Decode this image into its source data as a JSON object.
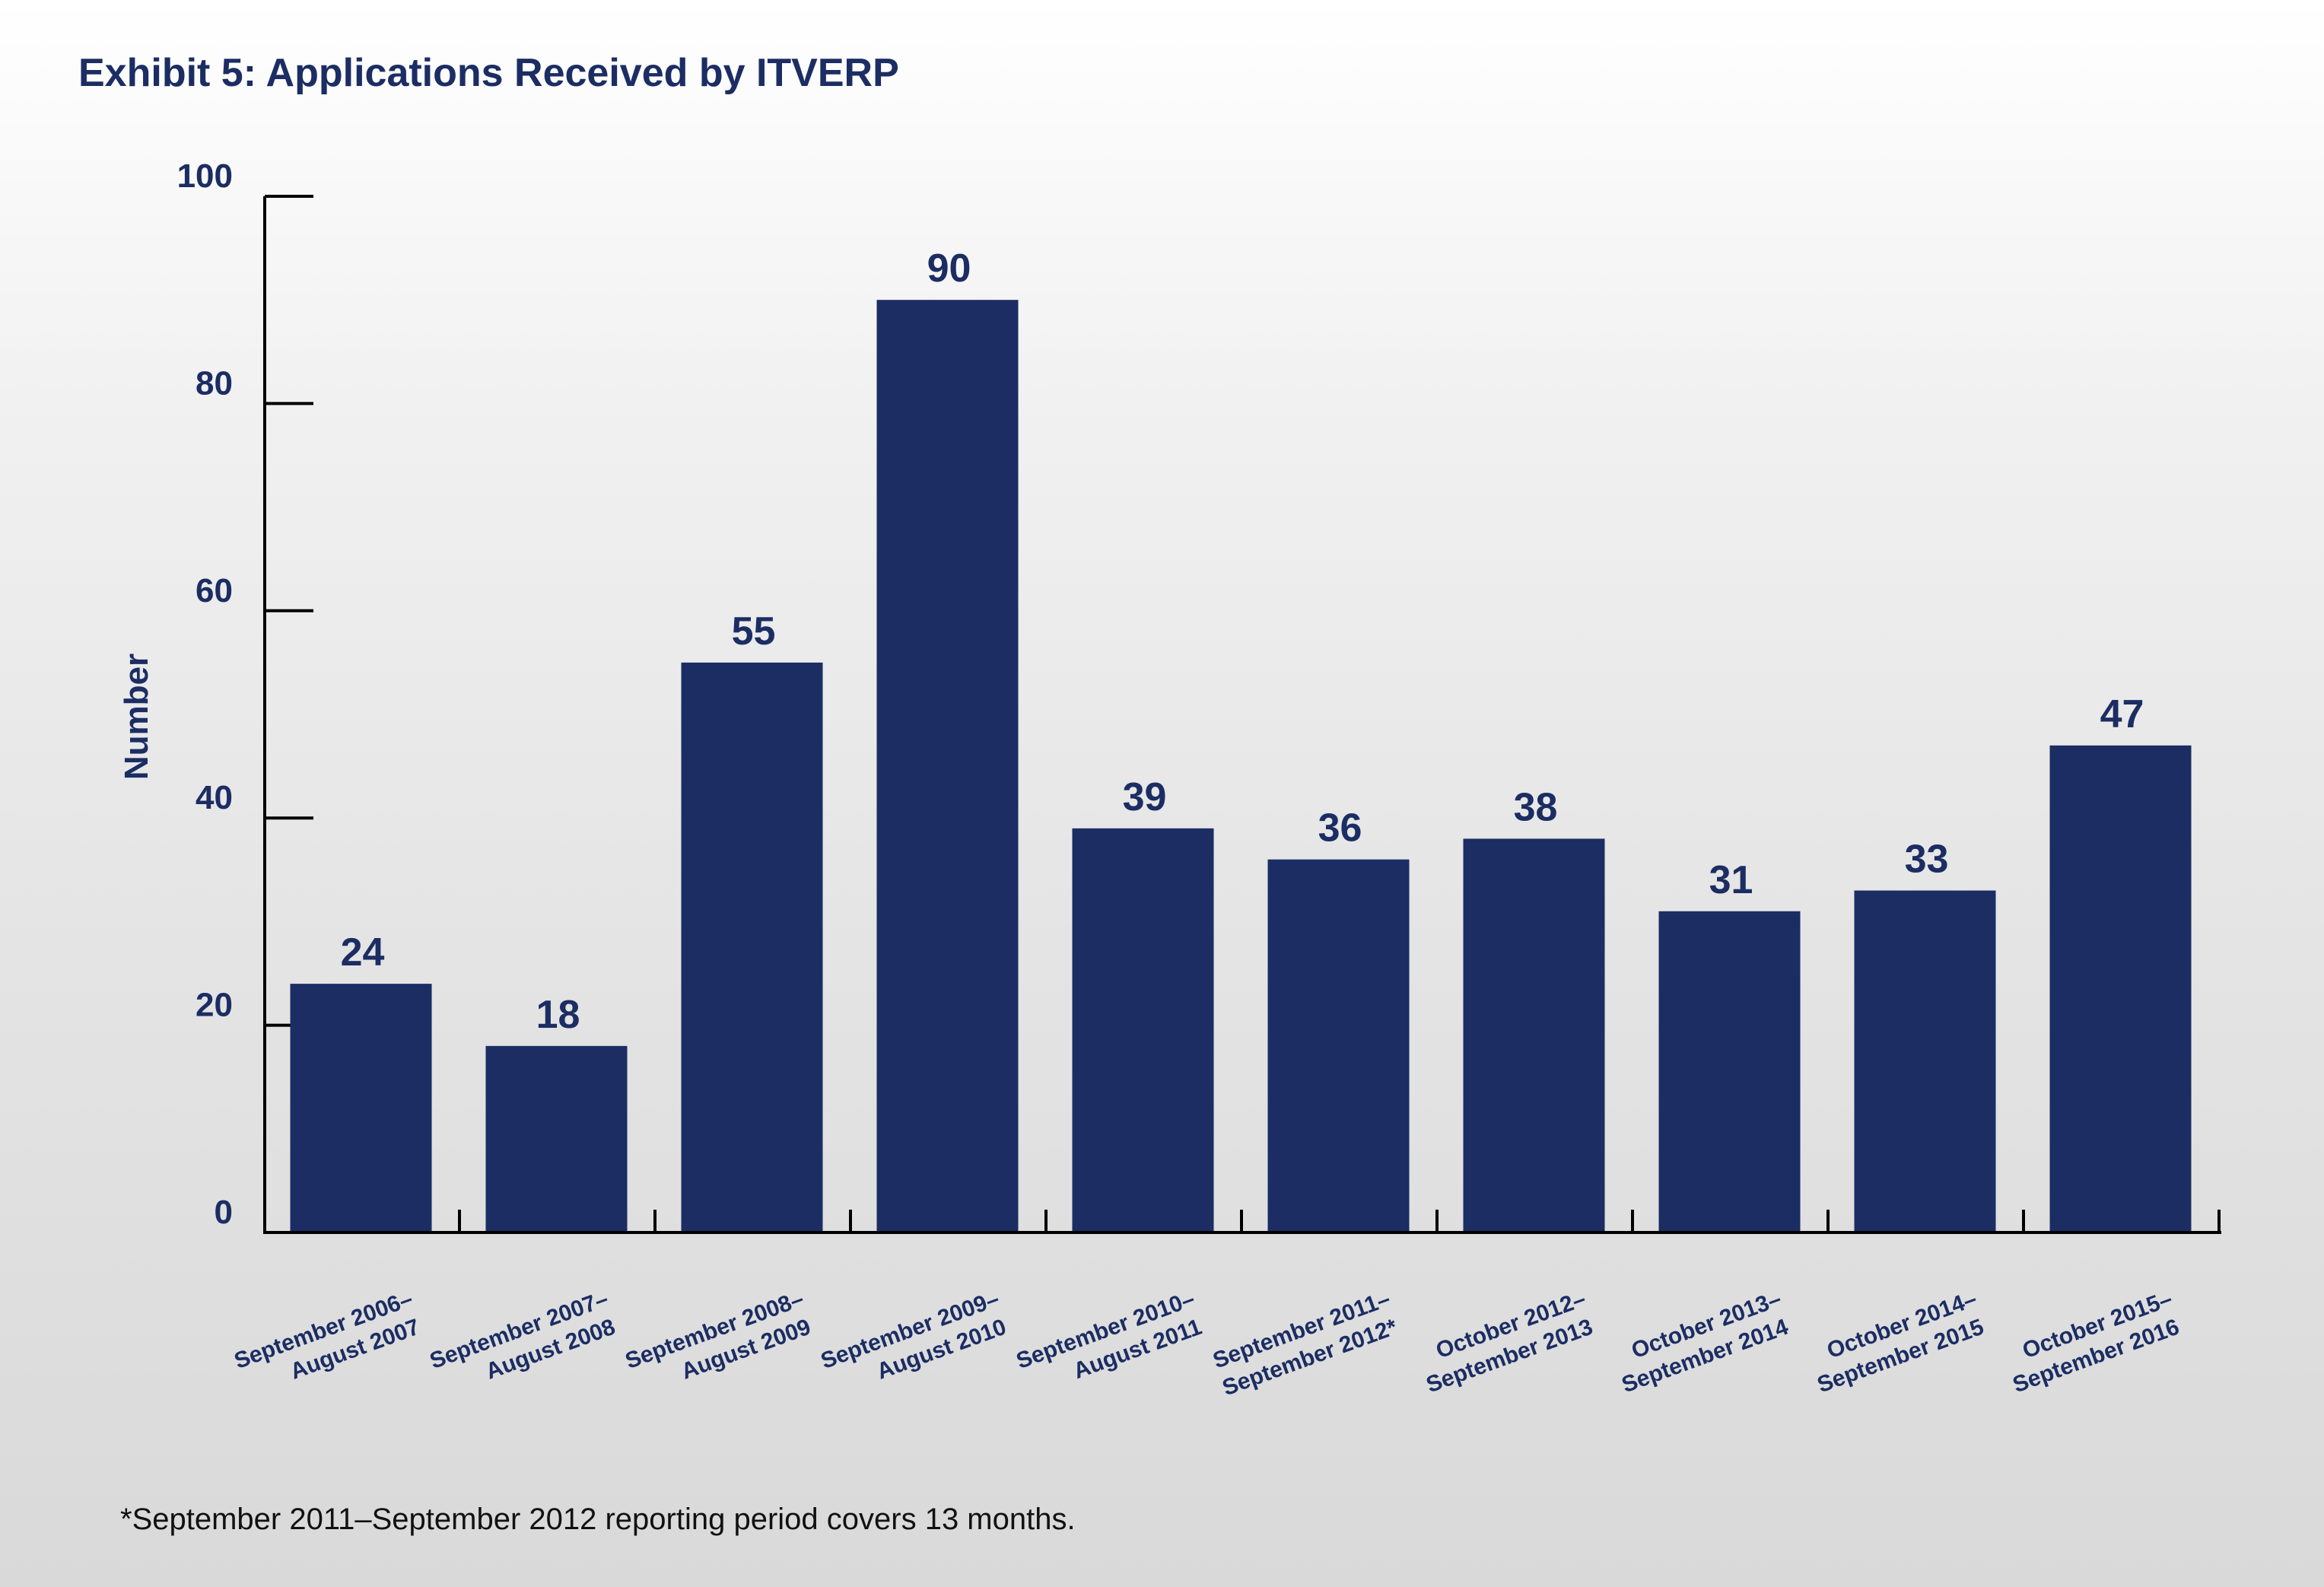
{
  "page": {
    "footnote": "*September 2011–September 2012 reporting period covers 13 months."
  },
  "chart_data": {
    "type": "bar",
    "title": "Exhibit 5: Applications Received by ITVERP",
    "xlabel": "",
    "ylabel": "Number",
    "ylim": [
      0,
      100
    ],
    "yticks": [
      0,
      20,
      40,
      60,
      80,
      100
    ],
    "grid": false,
    "categories": [
      [
        "September 2006–",
        "August 2007"
      ],
      [
        "September 2007–",
        "August 2008"
      ],
      [
        "September 2008–",
        "August 2009"
      ],
      [
        "September 2009–",
        "August 2010"
      ],
      [
        "September 2010–",
        "August 2011"
      ],
      [
        "September 2011–",
        "September 2012*"
      ],
      [
        "October 2012–",
        "September 2013"
      ],
      [
        "October 2013–",
        "September 2014"
      ],
      [
        "October 2014–",
        "September 2015"
      ],
      [
        "October 2015–",
        "September 2016"
      ]
    ],
    "values": [
      24,
      18,
      55,
      90,
      39,
      36,
      38,
      31,
      33,
      47
    ],
    "bar_color": "#1b2d63"
  }
}
